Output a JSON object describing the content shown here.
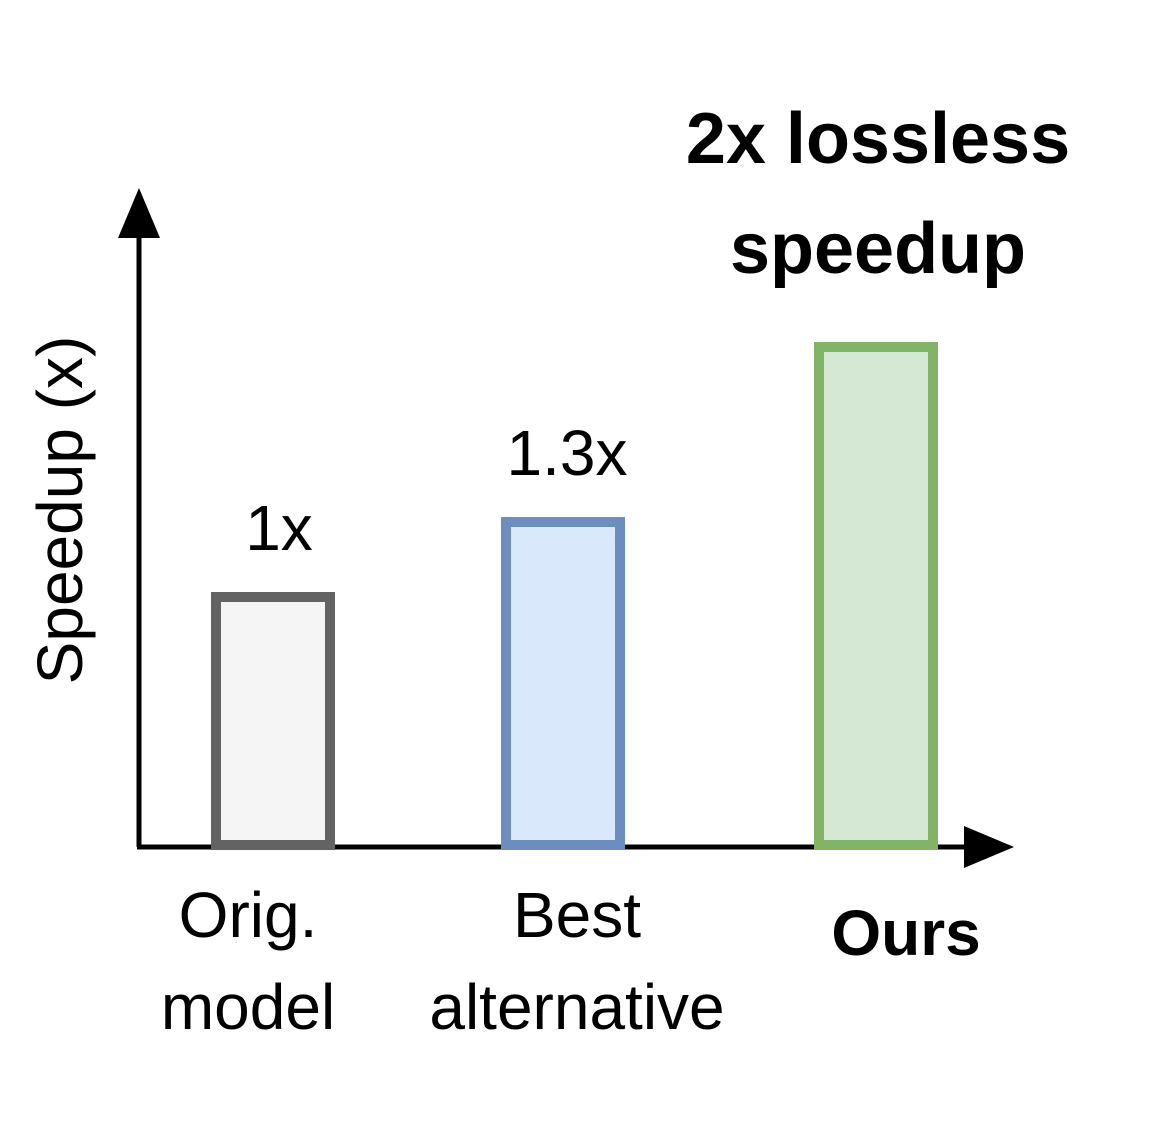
{
  "chart_data": {
    "type": "bar",
    "title": "",
    "xlabel": "",
    "ylabel": "Speedup (x)",
    "grid": false,
    "legend": "none",
    "categories": [
      {
        "lines": [
          "Orig.",
          "model"
        ],
        "bold": false
      },
      {
        "lines": [
          "Best",
          "alternative"
        ],
        "bold": false
      },
      {
        "lines": [
          "Ours"
        ],
        "bold": true
      }
    ],
    "values": [
      1,
      1.3,
      2
    ],
    "data_labels": [
      "1x",
      "1.3x",
      ""
    ],
    "annotation": {
      "lines": [
        "2x lossless",
        "speedup"
      ],
      "color": "#ff0000"
    },
    "colors": {
      "stroke": [
        "#636363",
        "#6c8ebf",
        "#82b366"
      ],
      "fill": [
        "#f5f5f5",
        "#dae8fc",
        "#d5e8d4"
      ],
      "axis": "#000000"
    }
  }
}
